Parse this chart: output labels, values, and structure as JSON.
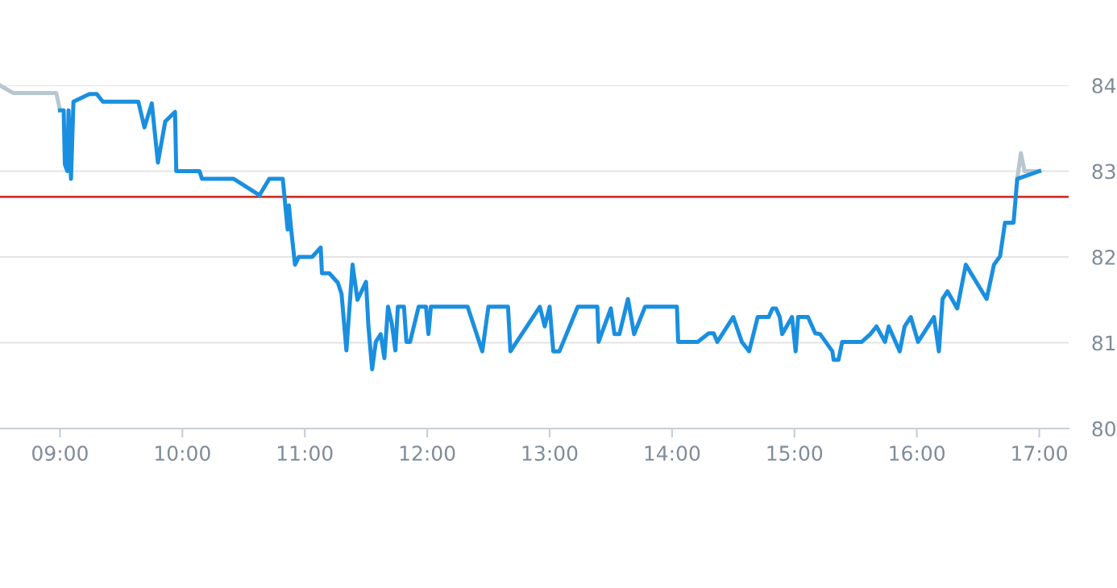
{
  "chart_data": {
    "type": "line",
    "series": [
      {
        "color": "#b8c6d0",
        "x": [
          8.51,
          8.62,
          8.97,
          9.0
        ],
        "values": [
          84.0,
          83.91,
          83.91,
          83.71
        ]
      },
      {
        "color": "#b8c6d0",
        "x": [
          16.82,
          16.85,
          16.88,
          17.0
        ],
        "values": [
          82.91,
          83.21,
          83.0,
          83.0
        ]
      },
      {
        "color": "#1a8fe0",
        "x": [
          9.0,
          9.03,
          9.04,
          9.06,
          9.07,
          9.09,
          9.11,
          9.24,
          9.3,
          9.35,
          9.64,
          9.69,
          9.75,
          9.8,
          9.86,
          9.94,
          9.95,
          10.14,
          10.16,
          10.42,
          10.63,
          10.71,
          10.82,
          10.84,
          10.86,
          10.87,
          10.89,
          10.92,
          10.95,
          11.06,
          11.13,
          11.14,
          11.2,
          11.27,
          11.3,
          11.34,
          11.39,
          11.43,
          11.5,
          11.52,
          11.55,
          11.58,
          11.62,
          11.65,
          11.68,
          11.71,
          11.74,
          11.76,
          11.81,
          11.83,
          11.86,
          11.93,
          11.99,
          12.01,
          12.03,
          12.33,
          12.45,
          12.5,
          12.66,
          12.68,
          12.92,
          12.96,
          13.0,
          13.03,
          13.08,
          13.23,
          13.39,
          13.4,
          13.5,
          13.53,
          13.57,
          13.64,
          13.69,
          13.78,
          14.04,
          14.05,
          14.21,
          14.3,
          14.34,
          14.37,
          14.5,
          14.57,
          14.63,
          14.7,
          14.79,
          14.82,
          14.85,
          14.88,
          14.9,
          14.98,
          15.01,
          15.03,
          15.11,
          15.17,
          15.21,
          15.31,
          15.32,
          15.36,
          15.39,
          15.55,
          15.62,
          15.67,
          15.74,
          15.77,
          15.86,
          15.9,
          15.95,
          16.01,
          16.14,
          16.18,
          16.21,
          16.25,
          16.33,
          16.4,
          16.57,
          16.63,
          16.68,
          16.72,
          16.79,
          16.82,
          17.0
        ],
        "values": [
          83.71,
          83.71,
          83.08,
          83.0,
          83.71,
          82.91,
          83.81,
          83.9,
          83.9,
          83.81,
          83.81,
          83.51,
          83.79,
          83.1,
          83.58,
          83.69,
          83.0,
          83.0,
          82.91,
          82.91,
          82.72,
          82.91,
          82.91,
          82.61,
          82.32,
          82.6,
          82.3,
          81.91,
          82.0,
          82.0,
          82.11,
          81.81,
          81.81,
          81.7,
          81.57,
          80.91,
          81.91,
          81.5,
          81.71,
          81.19,
          80.69,
          81.01,
          81.1,
          80.82,
          81.42,
          81.23,
          80.91,
          81.42,
          81.42,
          81.01,
          81.01,
          81.42,
          81.42,
          81.1,
          81.42,
          81.42,
          80.9,
          81.42,
          81.42,
          80.9,
          81.42,
          81.19,
          81.42,
          80.9,
          80.9,
          81.42,
          81.42,
          81.01,
          81.4,
          81.1,
          81.1,
          81.51,
          81.1,
          81.42,
          81.42,
          81.01,
          81.01,
          81.11,
          81.11,
          81.01,
          81.3,
          81.01,
          80.9,
          81.3,
          81.3,
          81.4,
          81.4,
          81.3,
          81.1,
          81.3,
          80.9,
          81.3,
          81.3,
          81.11,
          81.1,
          80.9,
          80.8,
          80.8,
          81.01,
          81.01,
          81.1,
          81.19,
          81.01,
          81.19,
          80.9,
          81.19,
          81.3,
          81.01,
          81.3,
          80.9,
          81.51,
          81.6,
          81.4,
          81.91,
          81.51,
          81.91,
          82.01,
          82.4,
          82.4,
          82.91,
          83.0
        ]
      }
    ],
    "xlim": [
      8.51,
      17.24
    ],
    "xticks": [
      {
        "value": 9,
        "label": "09:00"
      },
      {
        "value": 10,
        "label": "10:00"
      },
      {
        "value": 11,
        "label": "11:00"
      },
      {
        "value": 12,
        "label": "12:00"
      },
      {
        "value": 13,
        "label": "13:00"
      },
      {
        "value": 14,
        "label": "14:00"
      },
      {
        "value": 15,
        "label": "15:00"
      },
      {
        "value": 16,
        "label": "16:00"
      },
      {
        "value": 17,
        "label": "17:00"
      }
    ],
    "ylim": [
      80,
      84
    ],
    "yticks": [
      80,
      81,
      82,
      83,
      84
    ],
    "grid": "y",
    "ref_lines": [
      {
        "axis": "y",
        "value": 82.7,
        "color": "#d0342c"
      }
    ],
    "line_style": "solid",
    "marker": "none"
  }
}
